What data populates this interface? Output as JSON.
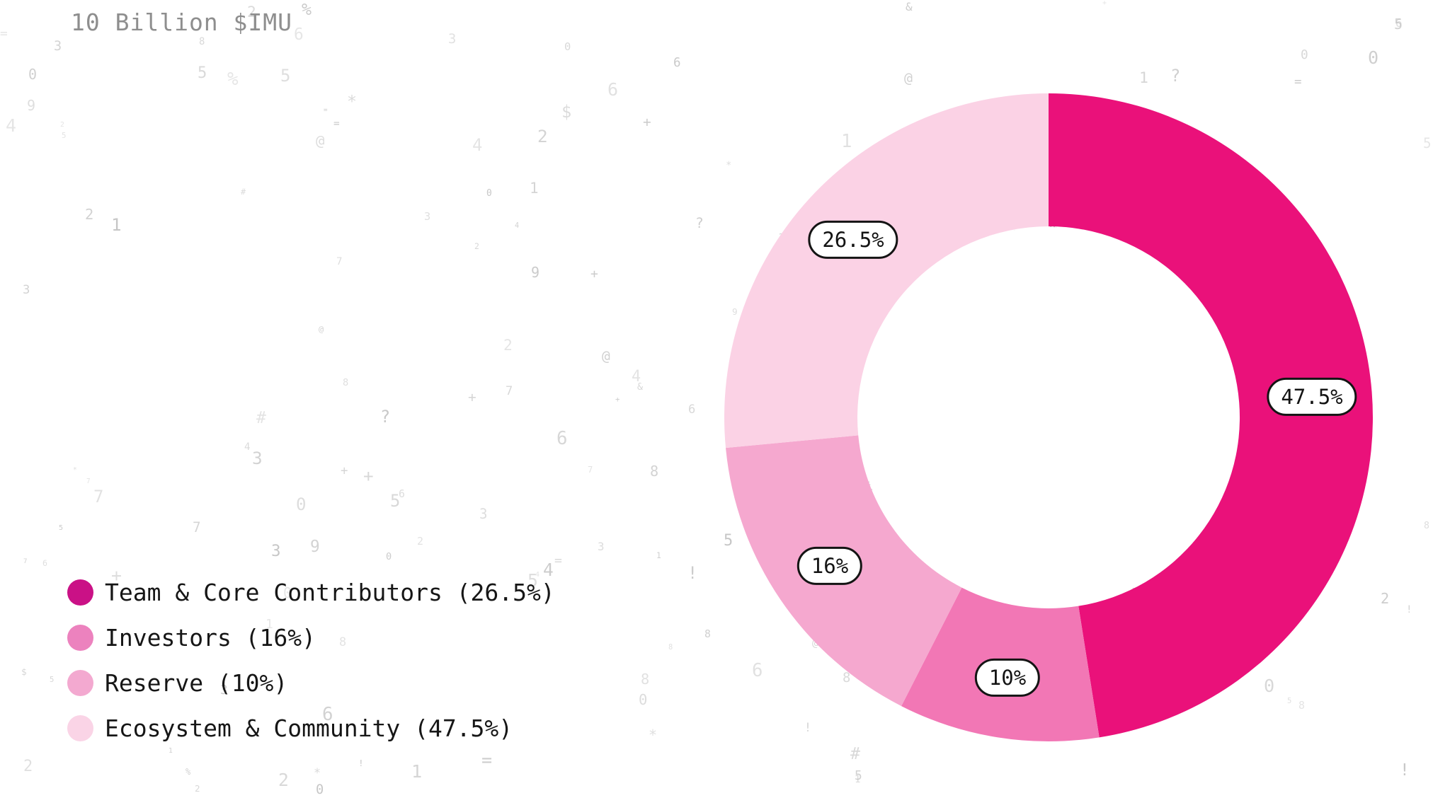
{
  "page": {
    "background_color": "#FFFFFF"
  },
  "title": {
    "text": "10 Billion $IMU",
    "color": "#8E8E8E"
  },
  "chart_data": {
    "type": "donut",
    "title": "10 Billion $IMU",
    "start_at_top": true,
    "direction": "clockwise",
    "inner_radius_ratio": 0.59,
    "slices": [
      {
        "name": "Ecosystem & Community",
        "value": 47.5,
        "label": "47.5%",
        "color": "#EA117A"
      },
      {
        "name": "Reserve",
        "value": 10,
        "label": "10%",
        "color": "#F277B5"
      },
      {
        "name": "Investors",
        "value": 16,
        "label": "16%",
        "color": "#F5A8CF"
      },
      {
        "name": "Team & Core Contributors",
        "value": 26.5,
        "label": "26.5%",
        "color": "#FBD2E5"
      }
    ],
    "label_pill": {
      "bg": "#FFFFFF",
      "border": "#141414",
      "text": "#141414"
    },
    "hole_color": "#FFFFFF"
  },
  "legend": {
    "text_color": "#161616",
    "items": [
      {
        "label": "Team & Core Contributors (26.5%)",
        "color": "#CA1186"
      },
      {
        "label": "Investors (16%)",
        "color": "#EC82BE"
      },
      {
        "label": "Reserve (10%)",
        "color": "#F3A9D0"
      },
      {
        "label": "Ecosystem & Community (47.5%)",
        "color": "#FAD4E6"
      }
    ]
  },
  "background": {
    "glyph_color": "#BDBDBD",
    "glyphs": [
      "0",
      "1",
      "2",
      "3",
      "4",
      "5",
      "6",
      "7",
      "8",
      "9",
      "0",
      "1",
      "2",
      "3",
      "4",
      "5",
      "6",
      "7",
      "8",
      "9",
      "@",
      "#",
      "&",
      "$",
      "%",
      "*",
      "+",
      "=",
      "?",
      "!"
    ]
  }
}
